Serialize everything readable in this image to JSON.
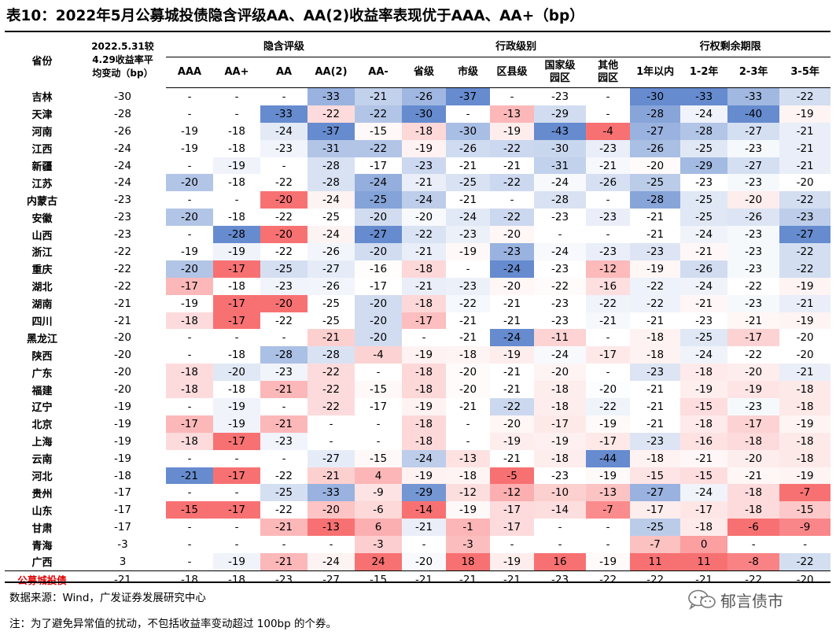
{
  "title": "表10：2022年5月公募城投债隐含评级AA、AA(2)收益率表现优于AAA、AA+（bp）",
  "header": {
    "province_label": "省份",
    "change_label_lines": [
      "2022.5.31较",
      "4.29收益率平",
      "均变动（bp）"
    ],
    "groups": [
      {
        "label": "隐含评级",
        "cols": [
          {
            "lines": [
              "AAA"
            ]
          },
          {
            "lines": [
              "AA+"
            ]
          },
          {
            "lines": [
              "AA"
            ]
          },
          {
            "lines": [
              "AA(2)"
            ]
          },
          {
            "lines": [
              "AA-"
            ]
          }
        ]
      },
      {
        "label": "行政级别",
        "cols": [
          {
            "lines": [
              "省级"
            ]
          },
          {
            "lines": [
              "市级"
            ]
          },
          {
            "lines": [
              "区县级"
            ]
          },
          {
            "lines": [
              "国家级",
              "园区"
            ]
          },
          {
            "lines": [
              "其他",
              "园区"
            ]
          }
        ]
      },
      {
        "label": "行权剩余期限",
        "cols": [
          {
            "lines": [
              "1年以内"
            ]
          },
          {
            "lines": [
              "1-2年"
            ]
          },
          {
            "lines": [
              "2-3年"
            ]
          },
          {
            "lines": [
              "3-5年"
            ]
          }
        ]
      }
    ]
  },
  "rows": [
    {
      "province": "吉林",
      "change": "-30",
      "cells": [
        "-",
        "-",
        "-",
        "-33",
        "-21",
        "-26",
        "-37",
        "-",
        "-23",
        "-",
        "-30",
        "-33",
        "-33",
        "-22"
      ]
    },
    {
      "province": "天津",
      "change": "-28",
      "cells": [
        "-",
        "-",
        "-33",
        "-22",
        "-22",
        "-30",
        "-",
        "-13",
        "-29",
        "-",
        "-28",
        "-24",
        "-40",
        "-19"
      ]
    },
    {
      "province": "河南",
      "change": "-26",
      "cells": [
        "-19",
        "-18",
        "-24",
        "-37",
        "-15",
        "-18",
        "-30",
        "-19",
        "-43",
        "-4",
        "-27",
        "-28",
        "-27",
        "-21"
      ]
    },
    {
      "province": "江西",
      "change": "-24",
      "cells": [
        "-19",
        "-18",
        "-23",
        "-31",
        "-22",
        "-19",
        "-26",
        "-22",
        "-30",
        "-23",
        "-26",
        "-25",
        "-23",
        "-21"
      ]
    },
    {
      "province": "新疆",
      "change": "-24",
      "cells": [
        "-",
        "-19",
        "-",
        "-28",
        "-17",
        "-23",
        "-21",
        "-21",
        "-31",
        "-21",
        "-20",
        "-29",
        "-27",
        "-21"
      ]
    },
    {
      "province": "江苏",
      "change": "-24",
      "cells": [
        "-20",
        "-18",
        "-22",
        "-28",
        "-24",
        "-21",
        "-25",
        "-22",
        "-24",
        "-26",
        "-25",
        "-23",
        "-23",
        "-20"
      ]
    },
    {
      "province": "内蒙古",
      "change": "-23",
      "cells": [
        "-",
        "-",
        "-20",
        "-24",
        "-25",
        "-24",
        "-21",
        "-",
        "-28",
        "-",
        "-28",
        "-25",
        "-20",
        "-22"
      ]
    },
    {
      "province": "安徽",
      "change": "-23",
      "cells": [
        "-20",
        "-18",
        "-22",
        "-25",
        "-20",
        "-20",
        "-24",
        "-22",
        "-23",
        "-23",
        "-21",
        "-25",
        "-26",
        "-23"
      ]
    },
    {
      "province": "山西",
      "change": "-23",
      "cells": [
        "-",
        "-28",
        "-20",
        "-24",
        "-27",
        "-22",
        "-23",
        "-20",
        "-",
        "-",
        "-21",
        "-24",
        "-23",
        "-27"
      ]
    },
    {
      "province": "浙江",
      "change": "-22",
      "cells": [
        "-19",
        "-19",
        "-22",
        "-26",
        "-20",
        "-21",
        "-19",
        "-23",
        "-24",
        "-23",
        "-23",
        "-21",
        "-23",
        "-22"
      ]
    },
    {
      "province": "重庆",
      "change": "-22",
      "cells": [
        "-20",
        "-17",
        "-25",
        "-27",
        "-16",
        "-18",
        "-",
        "-24",
        "-23",
        "-12",
        "-19",
        "-26",
        "-23",
        "-22"
      ]
    },
    {
      "province": "湖北",
      "change": "-22",
      "cells": [
        "-17",
        "-18",
        "-23",
        "-26",
        "-17",
        "-21",
        "-23",
        "-20",
        "-22",
        "-16",
        "-22",
        "-24",
        "-22",
        "-19"
      ]
    },
    {
      "province": "湖南",
      "change": "-21",
      "cells": [
        "-19",
        "-17",
        "-20",
        "-25",
        "-20",
        "-18",
        "-22",
        "-21",
        "-23",
        "-22",
        "-22",
        "-21",
        "-23",
        "-21"
      ]
    },
    {
      "province": "四川",
      "change": "-21",
      "cells": [
        "-18",
        "-17",
        "-22",
        "-25",
        "-20",
        "-17",
        "-21",
        "-21",
        "-23",
        "-21",
        "-21",
        "-23",
        "-21",
        "-19"
      ]
    },
    {
      "province": "黑龙江",
      "change": "-20",
      "cells": [
        "-",
        "-",
        "-",
        "-21",
        "-20",
        "-",
        "-21",
        "-24",
        "-11",
        "-",
        "-18",
        "-25",
        "-17",
        "-20"
      ]
    },
    {
      "province": "陕西",
      "change": "-20",
      "cells": [
        "-",
        "-18",
        "-28",
        "-28",
        "-4",
        "-19",
        "-18",
        "-19",
        "-24",
        "-17",
        "-18",
        "-24",
        "-22",
        "-20"
      ]
    },
    {
      "province": "广东",
      "change": "-20",
      "cells": [
        "-18",
        "-20",
        "-23",
        "-22",
        "-",
        "-18",
        "-20",
        "-21",
        "-20",
        "-",
        "-23",
        "-18",
        "-20",
        "-21"
      ]
    },
    {
      "province": "福建",
      "change": "-20",
      "cells": [
        "-18",
        "-18",
        "-21",
        "-22",
        "-15",
        "-18",
        "-20",
        "-21",
        "-18",
        "-20",
        "-21",
        "-19",
        "-19",
        "-18"
      ]
    },
    {
      "province": "辽宁",
      "change": "-19",
      "cells": [
        "-",
        "-19",
        "-",
        "-22",
        "-17",
        "-19",
        "-21",
        "-22",
        "-18",
        "-22",
        "-21",
        "-15",
        "-23",
        "-18"
      ]
    },
    {
      "province": "北京",
      "change": "-19",
      "cells": [
        "-17",
        "-19",
        "-21",
        "-",
        "-",
        "-18",
        "-",
        "-20",
        "-17",
        "-19",
        "-21",
        "-18",
        "-17",
        "-19"
      ]
    },
    {
      "province": "上海",
      "change": "-19",
      "cells": [
        "-18",
        "-17",
        "-23",
        "-",
        "-",
        "-18",
        "-",
        "-19",
        "-19",
        "-17",
        "-23",
        "-16",
        "-18",
        "-18"
      ]
    },
    {
      "province": "云南",
      "change": "-19",
      "cells": [
        "-",
        "-",
        "-",
        "-27",
        "-15",
        "-24",
        "-13",
        "-21",
        "-18",
        "-44",
        "-18",
        "-21",
        "-20",
        "-18"
      ]
    },
    {
      "province": "河北",
      "change": "-18",
      "cells": [
        "-21",
        "-17",
        "-22",
        "-21",
        "4",
        "-19",
        "-18",
        "-5",
        "-23",
        "-19",
        "-15",
        "-15",
        "-21",
        "-19"
      ]
    },
    {
      "province": "贵州",
      "change": "-17",
      "cells": [
        "-",
        "-",
        "-25",
        "-33",
        "-9",
        "-29",
        "-12",
        "-12",
        "-10",
        "-13",
        "-27",
        "-24",
        "-18",
        "-7"
      ]
    },
    {
      "province": "山东",
      "change": "-17",
      "cells": [
        "-15",
        "-17",
        "-22",
        "-20",
        "-6",
        "-14",
        "-19",
        "-17",
        "-14",
        "-7",
        "-17",
        "-17",
        "-18",
        "-15"
      ]
    },
    {
      "province": "甘肃",
      "change": "-17",
      "cells": [
        "-",
        "-",
        "-21",
        "-13",
        "6",
        "-21",
        "-1",
        "-17",
        "-",
        "-",
        "-25",
        "-18",
        "-6",
        "-9"
      ]
    },
    {
      "province": "青海",
      "change": "-3",
      "cells": [
        "-",
        "-",
        "-",
        "-",
        "-3",
        "-",
        "-3",
        "-",
        "-",
        "-",
        "-7",
        "0",
        "-",
        "-"
      ]
    },
    {
      "province": "广西",
      "change": "3",
      "cells": [
        "-",
        "-19",
        "-21",
        "-24",
        "24",
        "-20",
        "18",
        "-19",
        "16",
        "-19",
        "11",
        "11",
        "-8",
        "-22"
      ]
    }
  ],
  "total": {
    "province": "公募城投债",
    "change": "-21",
    "cells": [
      "-18",
      "-18",
      "-23",
      "-27",
      "-15",
      "-21",
      "-21",
      "-21",
      "-23",
      "-22",
      "-22",
      "-21",
      "-22",
      "-20"
    ]
  },
  "colors": {
    "blue": "#4472c4",
    "red": "#f8696b",
    "total_label": "#e00000"
  },
  "footer": {
    "source": "数据来源：Wind，广发证券发展研究中心",
    "note": "注：为了避免异常值的扰动，不包括收益率变动超过 100bp 的个券。",
    "watermark": "郁言债市",
    "watermark_icon": "wechat-icon"
  }
}
